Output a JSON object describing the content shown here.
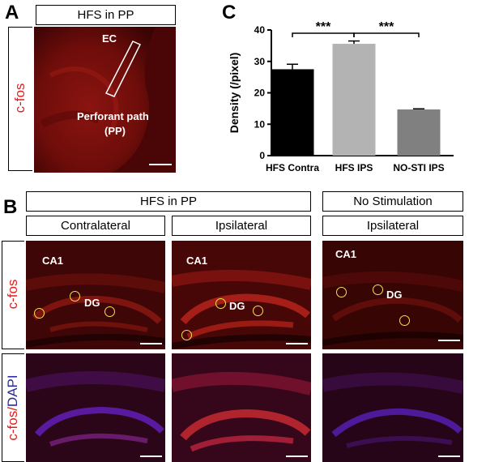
{
  "panel_a": {
    "letter": "A",
    "title": "HFS in PP",
    "row_label": "c-fos",
    "annotation_ec": "EC",
    "annotation_pp_line1": "Perforant path",
    "annotation_pp_line2": "(PP)"
  },
  "panel_b": {
    "letter": "B",
    "group_hfs": "HFS in PP",
    "group_nostim": "No Stimulation",
    "col_contralateral": "Contralateral",
    "col_ipsilateral_1": "Ipsilateral",
    "col_ipsilateral_2": "Ipsilateral",
    "row1_label": "c-fos",
    "row2_label_part1": "c-fos/",
    "row2_label_part2": "DAPI",
    "ca1_label": "CA1",
    "dg_label": "DG"
  },
  "panel_c": {
    "letter": "C"
  },
  "chart_data": {
    "type": "bar",
    "title": "",
    "xlabel": "",
    "ylabel": "Density (/pixel)",
    "ylim": [
      0,
      40
    ],
    "yticks": [
      "0",
      "10",
      "20",
      "30",
      "40"
    ],
    "categories": [
      "HFS Contra",
      "HFS IPS",
      "NO-STI IPS"
    ],
    "values": [
      27.5,
      35.6,
      14.7
    ],
    "errors": [
      1.6,
      0.9,
      0.2
    ],
    "bar_colors": [
      "#000000",
      "#b3b3b3",
      "#808080"
    ],
    "significance": [
      {
        "from": 0,
        "to": 1,
        "label": "***"
      },
      {
        "from": 1,
        "to": 2,
        "label": "***"
      }
    ]
  },
  "colors": {
    "red_label": "#e02020",
    "blue_label": "#2c2c9a",
    "roi": "#f2e24a"
  }
}
